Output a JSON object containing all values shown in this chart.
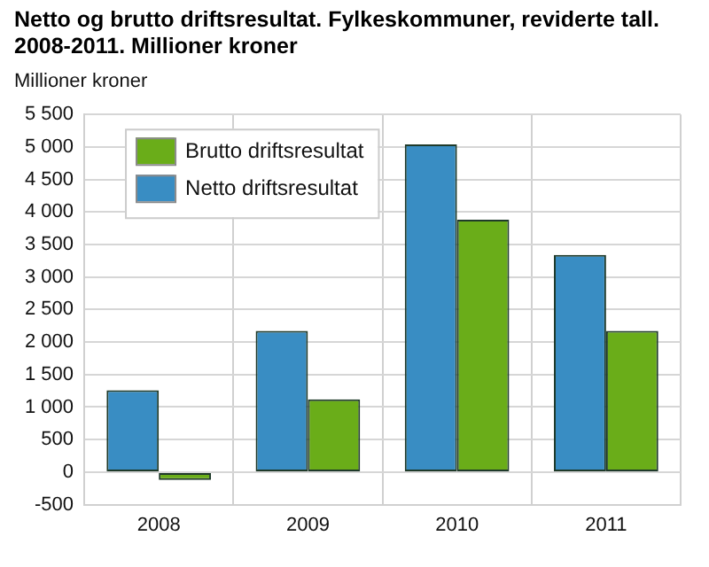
{
  "chart_data": {
    "type": "bar",
    "title": "Netto og brutto driftsresultat. Fylkeskommuner, reviderte tall. 2008-2011. Millioner kroner",
    "ylabel": "Millioner kroner",
    "categories": [
      "2008",
      "2009",
      "2010",
      "2011"
    ],
    "series": [
      {
        "name": "Netto driftsresultat",
        "color": "#398dc3",
        "values": [
          1260,
          2170,
          5040,
          3340
        ]
      },
      {
        "name": "Brutto driftsresultat",
        "color": "#6aad19",
        "values": [
          -120,
          1120,
          3880,
          2170
        ]
      }
    ],
    "ylim": [
      -500,
      5500
    ],
    "yticks": [
      {
        "value": -500,
        "label": "-500"
      },
      0,
      500,
      {
        "value": 1000,
        "label": "1 000"
      },
      {
        "value": 1500,
        "label": "1 500"
      },
      {
        "value": 2000,
        "label": "2 000"
      },
      {
        "value": 2500,
        "label": "2 500"
      },
      {
        "value": 3000,
        "label": "3 000"
      },
      {
        "value": 3500,
        "label": "3 500"
      },
      {
        "value": 4000,
        "label": "4 000"
      },
      {
        "value": 4500,
        "label": "4 500"
      },
      {
        "value": 5000,
        "label": "5 000"
      },
      {
        "value": 5500,
        "label": "5 500"
      }
    ],
    "grid": true,
    "legend": "top left"
  }
}
